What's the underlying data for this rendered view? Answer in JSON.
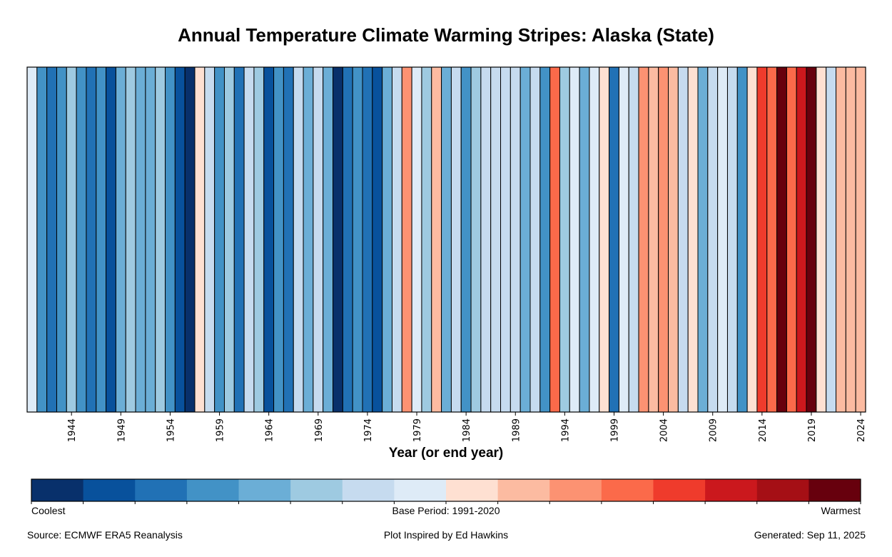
{
  "chart_data": {
    "type": "heatmap",
    "title": "Annual Temperature Climate Warming Stripes: Alaska (State)",
    "xlabel": "Year (or end year)",
    "ylabel": "",
    "x_range": [
      1940,
      2024
    ],
    "years": [
      1940,
      1941,
      1942,
      1943,
      1944,
      1945,
      1946,
      1947,
      1948,
      1949,
      1950,
      1951,
      1952,
      1953,
      1954,
      1955,
      1956,
      1957,
      1958,
      1959,
      1960,
      1961,
      1962,
      1963,
      1964,
      1965,
      1966,
      1967,
      1968,
      1969,
      1970,
      1971,
      1972,
      1973,
      1974,
      1975,
      1976,
      1977,
      1978,
      1979,
      1980,
      1981,
      1982,
      1983,
      1984,
      1985,
      1986,
      1987,
      1988,
      1989,
      1990,
      1991,
      1992,
      1993,
      1994,
      1995,
      1996,
      1997,
      1998,
      1999,
      2000,
      2001,
      2002,
      2003,
      2004,
      2005,
      2006,
      2007,
      2008,
      2009,
      2010,
      2011,
      2012,
      2013,
      2014,
      2015,
      2016,
      2017,
      2018,
      2019,
      2020,
      2021,
      2022,
      2023,
      2024
    ],
    "color_level": [
      7,
      3,
      2,
      3,
      5,
      3,
      2,
      3,
      1,
      4,
      5,
      4,
      4,
      5,
      3,
      1,
      0,
      8,
      6,
      3,
      5,
      2,
      6,
      5,
      1,
      3,
      2,
      6,
      4,
      6,
      4,
      0,
      2,
      3,
      2,
      1,
      4,
      6,
      10,
      7,
      5,
      9,
      4,
      6,
      3,
      5,
      6,
      6,
      6,
      6,
      4,
      6,
      3,
      11,
      5,
      7,
      4,
      7,
      8,
      2,
      7,
      6,
      10,
      9,
      10,
      9,
      6,
      8,
      4,
      6,
      7,
      6,
      3,
      8,
      12,
      11,
      15,
      11,
      13,
      15,
      8,
      6,
      9,
      9,
      9
    ],
    "color_level_note": "0 = coolest, 15 = warmest (16-level diverging scale)",
    "x_ticks": [
      1944,
      1949,
      1954,
      1959,
      1964,
      1969,
      1974,
      1979,
      1984,
      1989,
      1994,
      1999,
      2004,
      2009,
      2014,
      2019,
      2024
    ],
    "grid": false,
    "legend": {
      "type": "colorbar",
      "placement": "bottom",
      "levels": 16,
      "colors": [
        "#08306b",
        "#08519c",
        "#2171b5",
        "#4292c6",
        "#6baed6",
        "#9ecae1",
        "#c6dbef",
        "#deebf7",
        "#fee0d2",
        "#fcbba1",
        "#fc9272",
        "#fb6a4a",
        "#ef3b2c",
        "#cb181d",
        "#a50f15",
        "#67000d"
      ],
      "left_label": "Coolest",
      "center_label": "Base Period: 1991-2020",
      "right_label": "Warmest"
    }
  },
  "footer": {
    "source": "Source: ECMWF ERA5 Reanalysis",
    "credit": "Plot Inspired by Ed Hawkins",
    "generated": "Generated: Sep 11, 2025"
  }
}
